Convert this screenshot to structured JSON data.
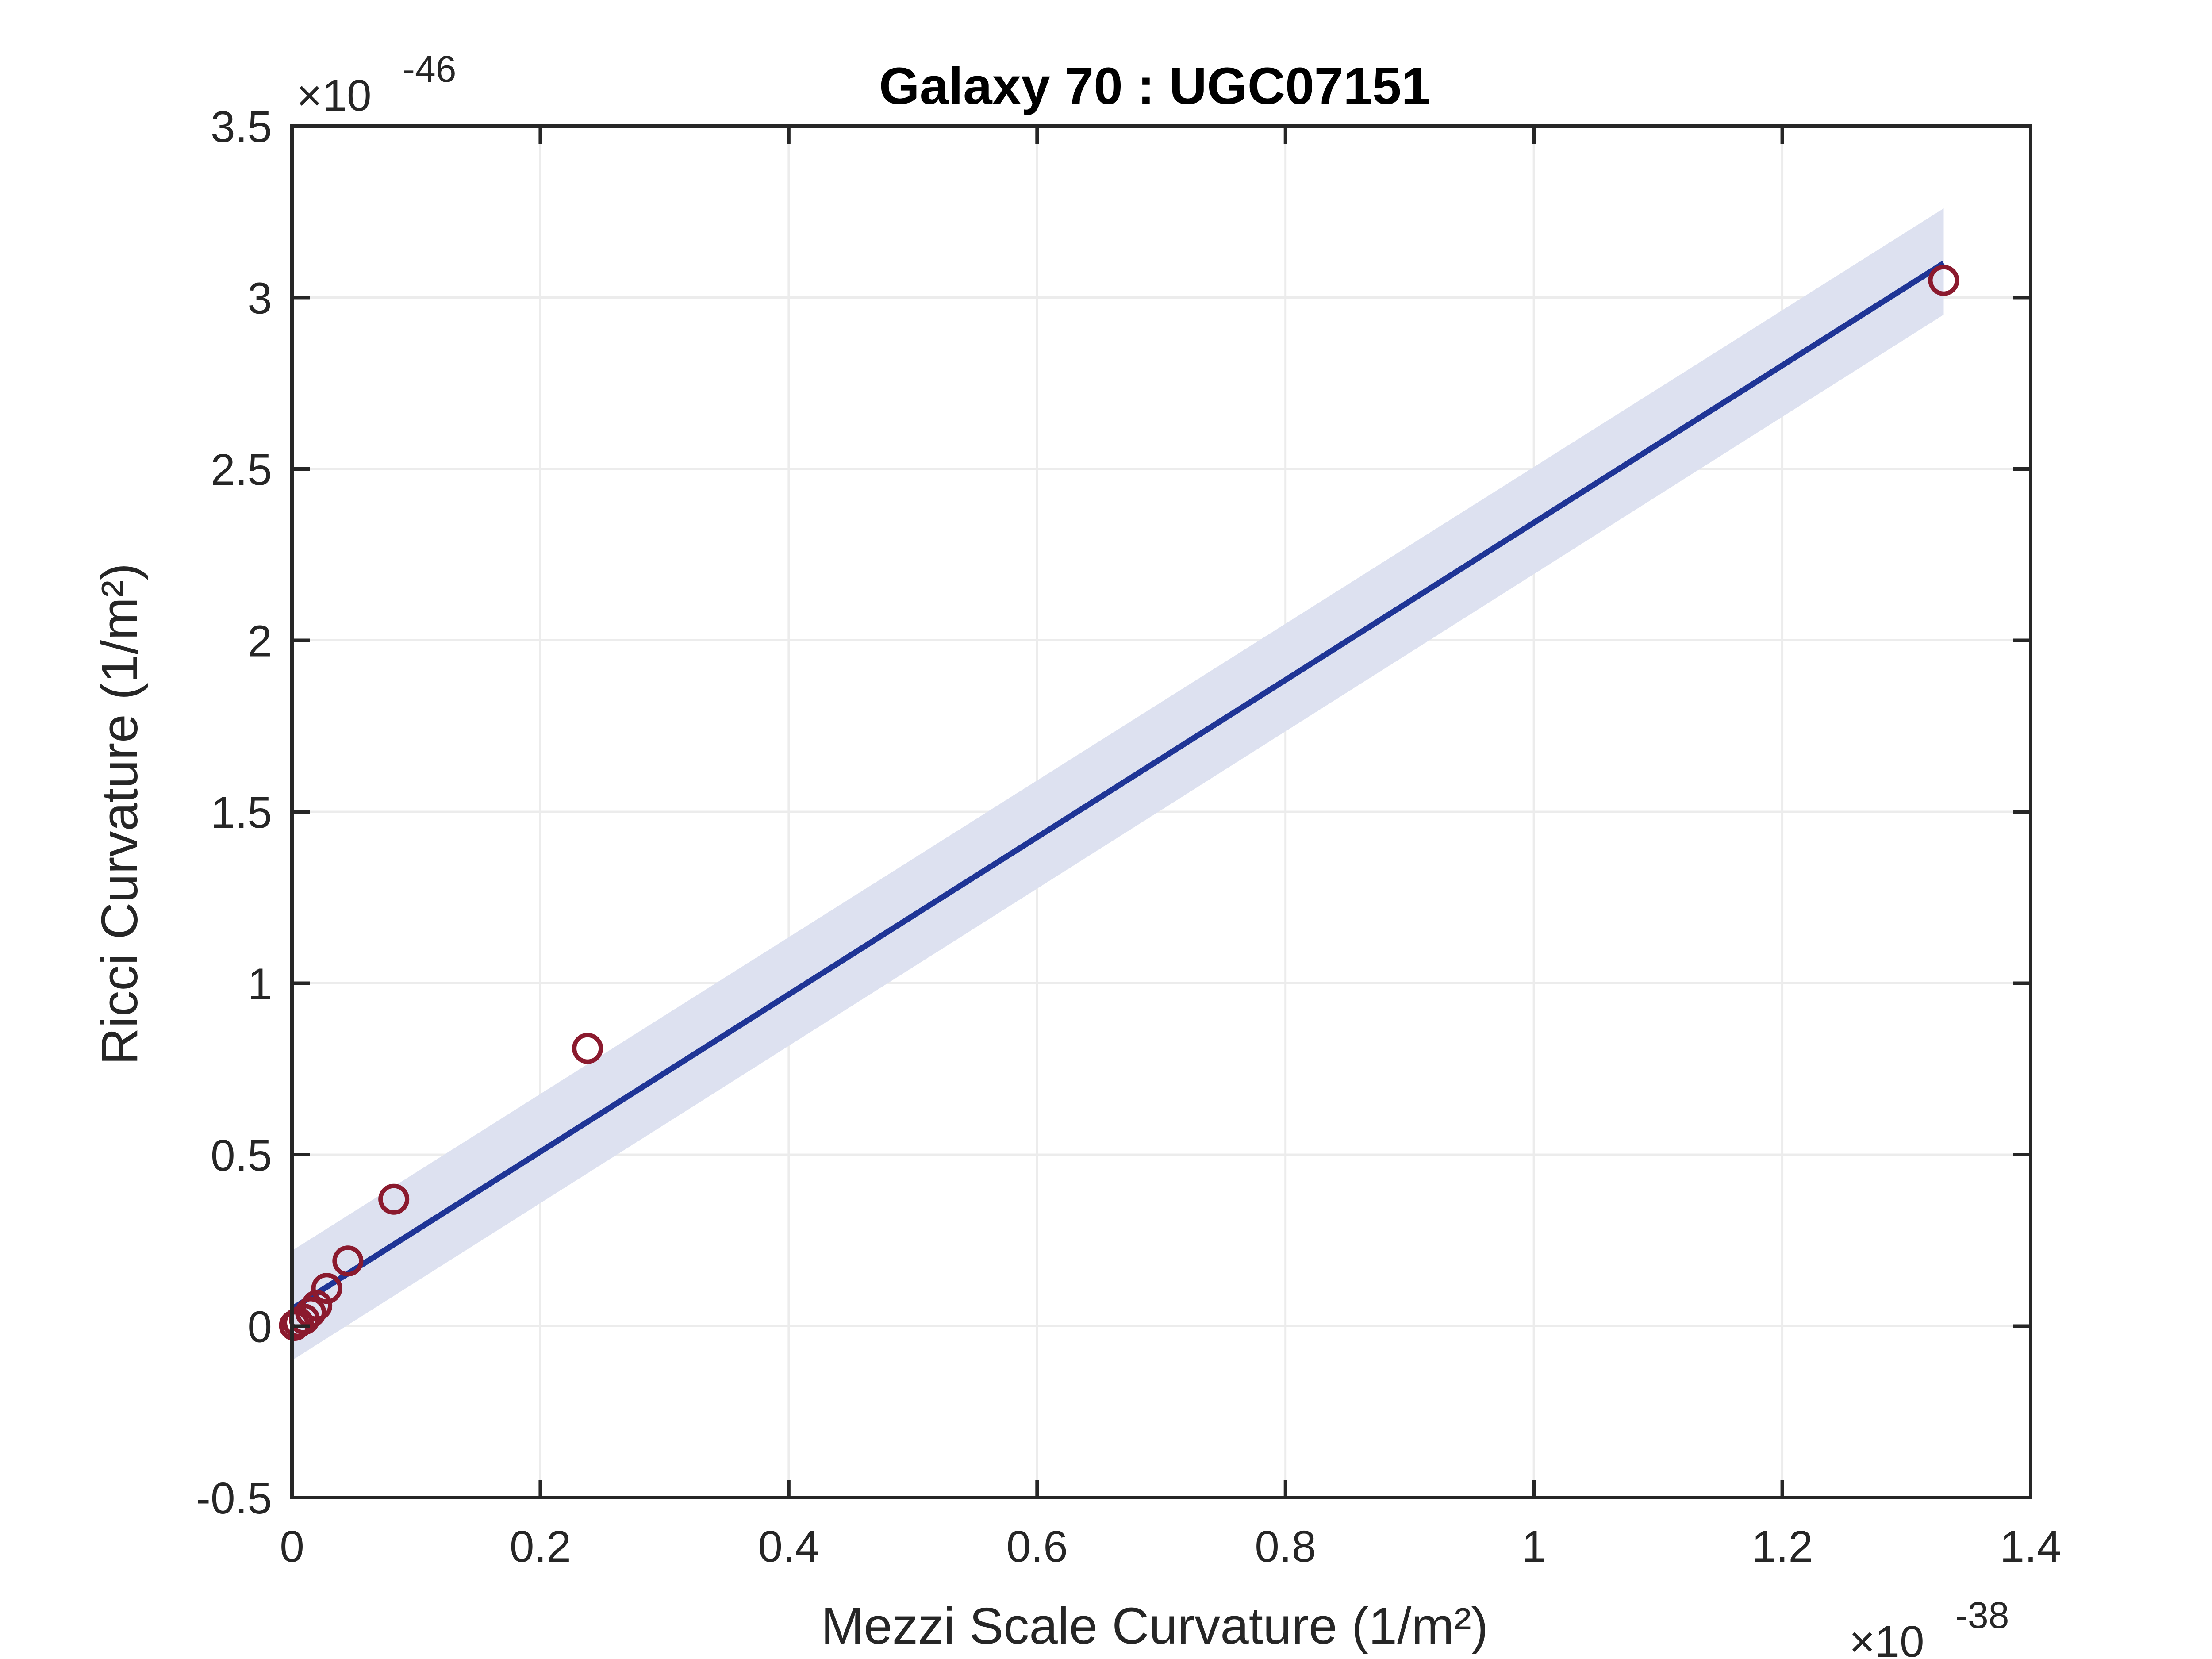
{
  "chart_data": {
    "type": "scatter",
    "title": "Galaxy 70 : UGC07151",
    "xlabel": "Mezzi Scale Curvature (1/m²)",
    "ylabel": "Ricci Curvature (1/m²)",
    "x_multiplier_label": "×10",
    "x_multiplier_exp": "-38",
    "y_multiplier_label": "×10",
    "y_multiplier_exp": "-46",
    "xlim": [
      0,
      1.4
    ],
    "ylim": [
      -0.5,
      3.5
    ],
    "xticks": [
      0,
      0.2,
      0.4,
      0.6,
      0.8,
      1,
      1.2,
      1.4
    ],
    "xtick_labels": [
      "0",
      "0.2",
      "0.4",
      "0.6",
      "0.8",
      "1",
      "1.2",
      "1.4"
    ],
    "yticks": [
      -0.5,
      0,
      0.5,
      1,
      1.5,
      2,
      2.5,
      3,
      3.5
    ],
    "ytick_labels": [
      "-0.5",
      "0",
      "0.5",
      "1",
      "1.5",
      "2",
      "2.5",
      "3",
      "3.5"
    ],
    "grid": true,
    "series": [
      {
        "type": "scatter",
        "color": "#8b1a2e",
        "x": [
          0.002,
          0.005,
          0.01,
          0.015,
          0.02,
          0.028,
          0.045,
          0.082,
          0.238,
          1.33
        ],
        "y": [
          0.002,
          0.01,
          0.02,
          0.04,
          0.06,
          0.11,
          0.19,
          0.37,
          0.81,
          3.05
        ]
      },
      {
        "type": "line",
        "color": "#1f3596",
        "x": [
          0.0,
          1.33
        ],
        "y": [
          0.05,
          3.1
        ]
      },
      {
        "type": "area",
        "color": "#dde1f0",
        "x": [
          0.0,
          1.33
        ],
        "lower": [
          -0.1,
          2.95
        ],
        "upper": [
          0.22,
          3.26
        ]
      }
    ]
  }
}
